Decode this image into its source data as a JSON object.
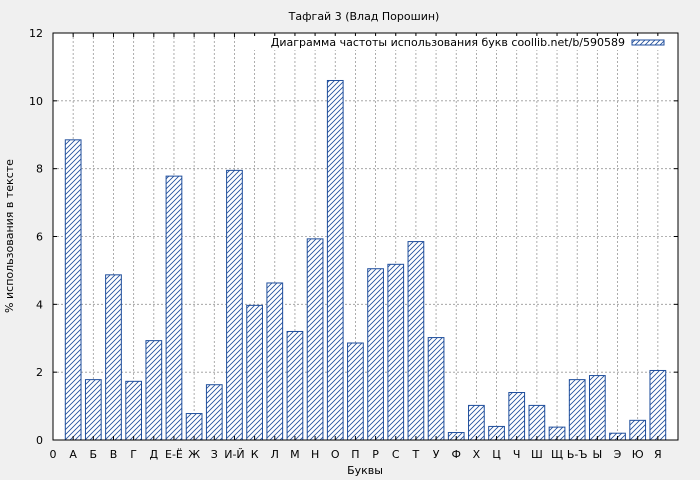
{
  "chart_data": {
    "type": "bar",
    "title": "Тафгай 3 (Влад Порошин)",
    "xlabel": "Буквы",
    "ylabel": "% использования в тексте",
    "ylim": [
      0,
      12
    ],
    "yticks": [
      0,
      2,
      4,
      6,
      8,
      10,
      12
    ],
    "grid": true,
    "legend_position": "top-right",
    "x_tick_labels": [
      "0",
      "А",
      "Б",
      "В",
      "Г",
      "Д",
      "Е-Ё",
      "Ж",
      "З",
      "И-Й",
      "К",
      "Л",
      "М",
      "Н",
      "О",
      "П",
      "Р",
      "С",
      "Т",
      "У",
      "Ф",
      "Х",
      "Ц",
      "Ч",
      "Ш",
      "Щ",
      "Ь-Ъ",
      "Ы",
      "Э",
      "Ю",
      "Я"
    ],
    "categories": [
      "А",
      "Б",
      "В",
      "Г",
      "Д",
      "Е-Ё",
      "Ж",
      "З",
      "И-Й",
      "К",
      "Л",
      "М",
      "Н",
      "О",
      "П",
      "Р",
      "С",
      "Т",
      "У",
      "Ф",
      "Х",
      "Ц",
      "Ч",
      "Ш",
      "Щ",
      "Ь-Ъ",
      "Ы",
      "Э",
      "Ю",
      "Я"
    ],
    "series": [
      {
        "name": "Диаграмма частоты использования букв coollib.net/b/590589",
        "color": "#1f4e9c",
        "values": [
          8.85,
          1.78,
          4.87,
          1.73,
          2.93,
          7.78,
          0.78,
          1.63,
          7.95,
          3.97,
          4.63,
          3.2,
          5.93,
          10.6,
          2.86,
          5.05,
          5.18,
          5.85,
          3.02,
          0.22,
          1.02,
          0.4,
          1.4,
          1.02,
          0.38,
          1.78,
          1.9,
          0.2,
          0.58,
          2.05
        ]
      }
    ]
  }
}
